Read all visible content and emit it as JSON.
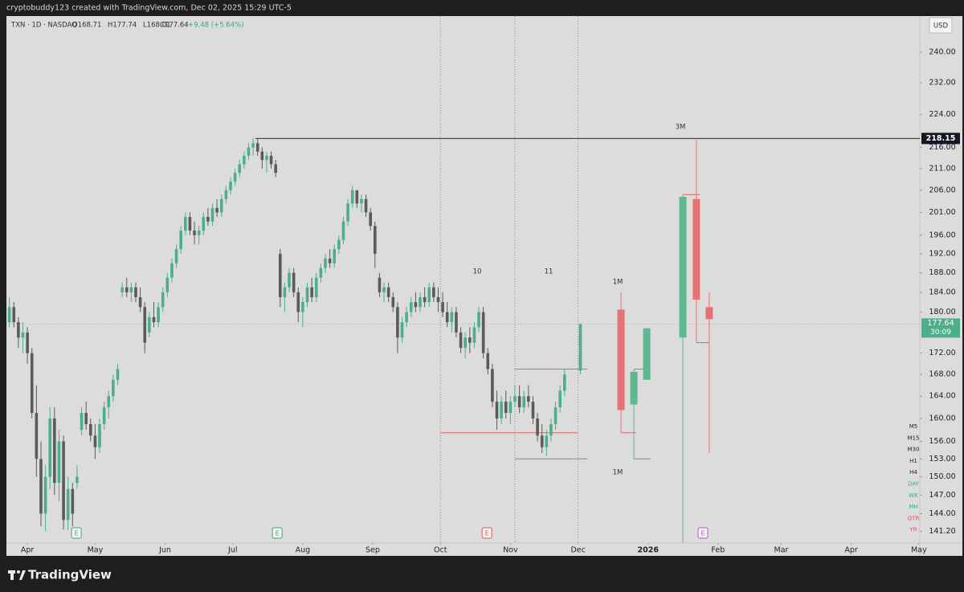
{
  "header": {
    "credit": "cryptobuddy123 created with TradingView.com, Dec 02, 2025 15:29 UTC-5",
    "currency": "USD",
    "brand": "TradingView"
  },
  "timeframes": [
    {
      "label": "M5",
      "color": "#222222"
    },
    {
      "label": "M15",
      "color": "#222222"
    },
    {
      "label": "M30",
      "color": "#222222"
    },
    {
      "label": "H1",
      "color": "#222222"
    },
    {
      "label": "H4",
      "color": "#222222"
    },
    {
      "label": "DAY",
      "color": "#3fa874"
    },
    {
      "label": "WK",
      "color": "#3fa874"
    },
    {
      "label": "MH",
      "color": "#3fa874"
    },
    {
      "label": "QTR",
      "color": "#e05555"
    },
    {
      "label": "YR",
      "color": "#e05555"
    }
  ],
  "annotations": [
    "10",
    "11",
    "1M",
    "1M",
    "3M"
  ],
  "chart_data": {
    "type": "candlestick",
    "symbol": "TXN · 1D · NASDAQ",
    "ohlc": [
      "O168.71",
      "H177.74",
      "L168.01",
      "C177.64"
    ],
    "change": "+9.48 (+5.64%)",
    "log_scale": true,
    "up_color": "#4caf87",
    "down_color": "#5b5b5b",
    "x": [
      82,
      84,
      86,
      88,
      90,
      92,
      94,
      96,
      98,
      100,
      102,
      104,
      106,
      108,
      110,
      112,
      114,
      116,
      118,
      120,
      122,
      124,
      126,
      128,
      130,
      132,
      134,
      136,
      138,
      140,
      142,
      144,
      146,
      148,
      150,
      152,
      154,
      156,
      158,
      160,
      162,
      164,
      166,
      168,
      170,
      172,
      174,
      176,
      178,
      180,
      182,
      184,
      186,
      188,
      190,
      192,
      194,
      196,
      198,
      200,
      202,
      204,
      206,
      208,
      210,
      212,
      214,
      216,
      218,
      220,
      222,
      224,
      226,
      228,
      230,
      232,
      234,
      236,
      238,
      240,
      242,
      244,
      246,
      248,
      250,
      252,
      254,
      256,
      258,
      260,
      262,
      264,
      266,
      268,
      270,
      272,
      274,
      276,
      278,
      280,
      282,
      284,
      286,
      288,
      290,
      292,
      294,
      296,
      298,
      300,
      302,
      304,
      306,
      308,
      310,
      312,
      314,
      316,
      318,
      320,
      322,
      324,
      326,
      328,
      335
    ],
    "open": [
      178,
      181,
      178,
      175,
      176,
      172,
      161,
      153,
      144,
      150,
      160,
      149,
      156,
      143,
      148,
      149,
      158,
      161,
      159,
      157,
      155,
      159,
      162,
      164,
      167,
      184,
      185,
      184,
      185,
      183,
      181,
      176,
      179,
      178,
      181,
      184,
      187,
      190,
      193,
      197,
      200,
      197,
      196,
      197,
      200,
      199,
      202,
      201,
      204,
      206,
      208,
      210,
      212,
      214,
      216,
      217,
      215,
      213,
      214,
      212,
      192,
      183,
      185,
      188,
      184,
      180,
      182,
      185,
      183,
      187,
      189,
      191,
      190,
      193,
      195,
      199,
      203,
      206,
      203,
      204,
      201,
      198,
      187,
      184,
      185,
      183,
      181,
      175,
      178,
      180,
      182,
      181,
      183,
      182,
      185,
      183,
      182,
      180,
      178,
      180,
      176,
      173,
      175,
      174,
      177,
      180,
      172,
      169,
      163,
      160,
      163,
      161,
      163,
      164,
      162,
      164,
      163,
      160,
      157,
      155,
      157,
      159,
      162,
      165,
      168.71
    ],
    "high": [
      183,
      182,
      179,
      178,
      177,
      173,
      166,
      156,
      152,
      162,
      162,
      158,
      157,
      150,
      149,
      152,
      162,
      163,
      160,
      159,
      160,
      163,
      165,
      168,
      170,
      186,
      187,
      186,
      186,
      185,
      182,
      180,
      182,
      182,
      185,
      188,
      191,
      194,
      198,
      201,
      201,
      199,
      198,
      201,
      202,
      203,
      204,
      205,
      207,
      209,
      211,
      213,
      215,
      217,
      218.15,
      218,
      216,
      215,
      215,
      213,
      193,
      186,
      189,
      189,
      185,
      183,
      186,
      187,
      188,
      190,
      192,
      193,
      194,
      196,
      200,
      204,
      207,
      206,
      205,
      205,
      202,
      199,
      188,
      186,
      186,
      184,
      182,
      179,
      181,
      183,
      184,
      184,
      185,
      186,
      186,
      185,
      184,
      182,
      181,
      181,
      177,
      176,
      177,
      178,
      181,
      181,
      173,
      170,
      165,
      164,
      165,
      164,
      166,
      166,
      165,
      166,
      164,
      161,
      159,
      158,
      160,
      163,
      166,
      169,
      177.74
    ],
    "low": [
      177,
      177,
      173,
      172,
      170,
      160,
      150,
      142,
      141.3,
      148,
      147,
      146,
      141.5,
      141.4,
      142,
      148,
      157,
      158,
      156,
      153,
      154,
      158,
      160,
      163,
      166,
      183,
      183,
      182,
      182,
      180,
      172,
      175,
      177,
      177,
      180,
      183,
      186,
      189,
      192,
      196,
      196,
      194,
      194,
      196,
      198,
      198,
      200,
      200,
      203,
      205,
      207,
      209,
      211,
      213,
      214,
      214,
      211,
      210,
      211,
      209,
      181,
      180,
      184,
      183,
      178,
      177,
      181,
      182,
      182,
      186,
      188,
      189,
      189,
      192,
      194,
      198,
      202,
      202,
      201,
      200,
      197,
      189,
      183,
      182,
      182,
      180,
      172,
      174,
      177,
      179,
      180,
      180,
      181,
      181,
      182,
      180,
      179,
      177,
      176,
      175,
      172,
      171,
      172,
      173,
      176,
      171,
      168,
      162,
      158,
      159,
      160,
      159,
      162,
      161,
      161,
      162,
      159,
      156,
      154,
      153.5,
      156,
      158,
      161,
      164,
      168.01
    ],
    "close": [
      181,
      178,
      175,
      176,
      172,
      161,
      153,
      144,
      150,
      160,
      149,
      156,
      143,
      148,
      144,
      150,
      161,
      159,
      157,
      155,
      159,
      162,
      164,
      167,
      169,
      185,
      184,
      185,
      183,
      181,
      174,
      179,
      178,
      181,
      184,
      187,
      190,
      193,
      197,
      200,
      197,
      196,
      197,
      200,
      199,
      202,
      201,
      204,
      206,
      208,
      210,
      212,
      214,
      216,
      217,
      215,
      213,
      214,
      212,
      210,
      183,
      185,
      188,
      184,
      180,
      182,
      185,
      183,
      187,
      189,
      191,
      190,
      193,
      195,
      199,
      203,
      206,
      203,
      204,
      201,
      198,
      192,
      184,
      185,
      183,
      181,
      175,
      178,
      180,
      182,
      181,
      183,
      182,
      185,
      183,
      182,
      180,
      178,
      180,
      176,
      173,
      175,
      174,
      177,
      180,
      172,
      169,
      163,
      160,
      163,
      161,
      163,
      164,
      162,
      164,
      163,
      160,
      157,
      155,
      157,
      159,
      162,
      165,
      168,
      177.64
    ],
    "xlim": [
      80.7,
      485.4
    ],
    "xticks": [
      {
        "value": 90,
        "label": "Apr"
      },
      {
        "value": 120,
        "label": "May"
      },
      {
        "value": 151,
        "label": "Jun"
      },
      {
        "value": 181,
        "label": "Jul"
      },
      {
        "value": 212,
        "label": "Aug"
      },
      {
        "value": 243,
        "label": "Sep"
      },
      {
        "value": 273,
        "label": "Oct"
      },
      {
        "value": 304,
        "label": "Nov"
      },
      {
        "value": 334,
        "label": "Dec"
      },
      {
        "value": 365,
        "label": "2026"
      },
      {
        "value": 396,
        "label": "Feb"
      },
      {
        "value": 424,
        "label": "Mar"
      },
      {
        "value": 455,
        "label": "Apr"
      },
      {
        "value": 485,
        "label": "May"
      }
    ],
    "ylim": [
      139.4,
      249.8
    ],
    "yticks": [
      {
        "value": 240,
        "label": "240.00"
      },
      {
        "value": 232,
        "label": "232.00"
      },
      {
        "value": 224,
        "label": "224.00"
      },
      {
        "value": 216,
        "label": "216.00"
      },
      {
        "value": 211,
        "label": "211.00"
      },
      {
        "value": 206,
        "label": "206.00"
      },
      {
        "value": 201,
        "label": "201.00"
      },
      {
        "value": 196,
        "label": "196.00"
      },
      {
        "value": 192,
        "label": "192.00"
      },
      {
        "value": 188,
        "label": "188.00"
      },
      {
        "value": 184,
        "label": "184.00"
      },
      {
        "value": 180,
        "label": "180.00"
      },
      {
        "value": 172,
        "label": "172.00"
      },
      {
        "value": 168,
        "label": "168.00"
      },
      {
        "value": 164,
        "label": "164.00"
      },
      {
        "value": 160,
        "label": "160.00"
      },
      {
        "value": 156,
        "label": "156.00"
      },
      {
        "value": 153,
        "label": "153.00"
      },
      {
        "value": 150,
        "label": "150.00"
      },
      {
        "value": 147,
        "label": "147.00"
      },
      {
        "value": 144,
        "label": "144.00"
      },
      {
        "value": 141.2,
        "label": "141.20"
      }
    ],
    "price_tags": [
      218.15
    ],
    "price_tag_color": "#131722",
    "countdown": "30:09",
    "current_line_color": "#8fc4ad",
    "levels": [
      {
        "value": 218.15,
        "from": 191,
        "to": 485.4,
        "color": "#2a2a2a"
      },
      {
        "value": 157.5,
        "from": 273,
        "to": 334,
        "color": "#e06666"
      },
      {
        "value": 169,
        "from": 306,
        "to": 338,
        "color": "#888888"
      },
      {
        "value": 153,
        "from": 306,
        "to": 338,
        "color": "#888888"
      },
      {
        "value": 157.5,
        "from": 353,
        "to": 359.7,
        "color": "#e06666"
      },
      {
        "value": 169,
        "from": 358.7,
        "to": 364.4,
        "color": "#888888"
      },
      {
        "value": 153,
        "from": 358.7,
        "to": 366,
        "color": "#888888"
      },
      {
        "value": 205,
        "from": 380.4,
        "to": 388,
        "color": "#e06666"
      },
      {
        "value": 174,
        "from": 386.4,
        "to": 392.1,
        "color": "#888888"
      }
    ],
    "vlines": [
      273,
      306,
      334
    ],
    "projections": {
      "up_color": "#5fb88f",
      "down_color": "#e57373",
      "x": [
        353,
        358.7,
        364.4,
        380.4,
        386.4,
        392.1
      ],
      "open": [
        180.5,
        162.5,
        167,
        175,
        204,
        181
      ],
      "high": [
        184,
        169,
        176.8,
        205,
        218.15,
        184
      ],
      "low": [
        157.5,
        153,
        167,
        139.4,
        174,
        154
      ],
      "close": [
        161.5,
        168.5,
        176.8,
        204.5,
        182.5,
        178.6
      ]
    },
    "earnings": {
      "label": "E",
      "x": [
        111.7,
        200.7,
        293.6,
        389.3
      ],
      "colors": [
        "#3fa874",
        "#3fa874",
        "#e05555",
        "#c050d0"
      ]
    }
  }
}
